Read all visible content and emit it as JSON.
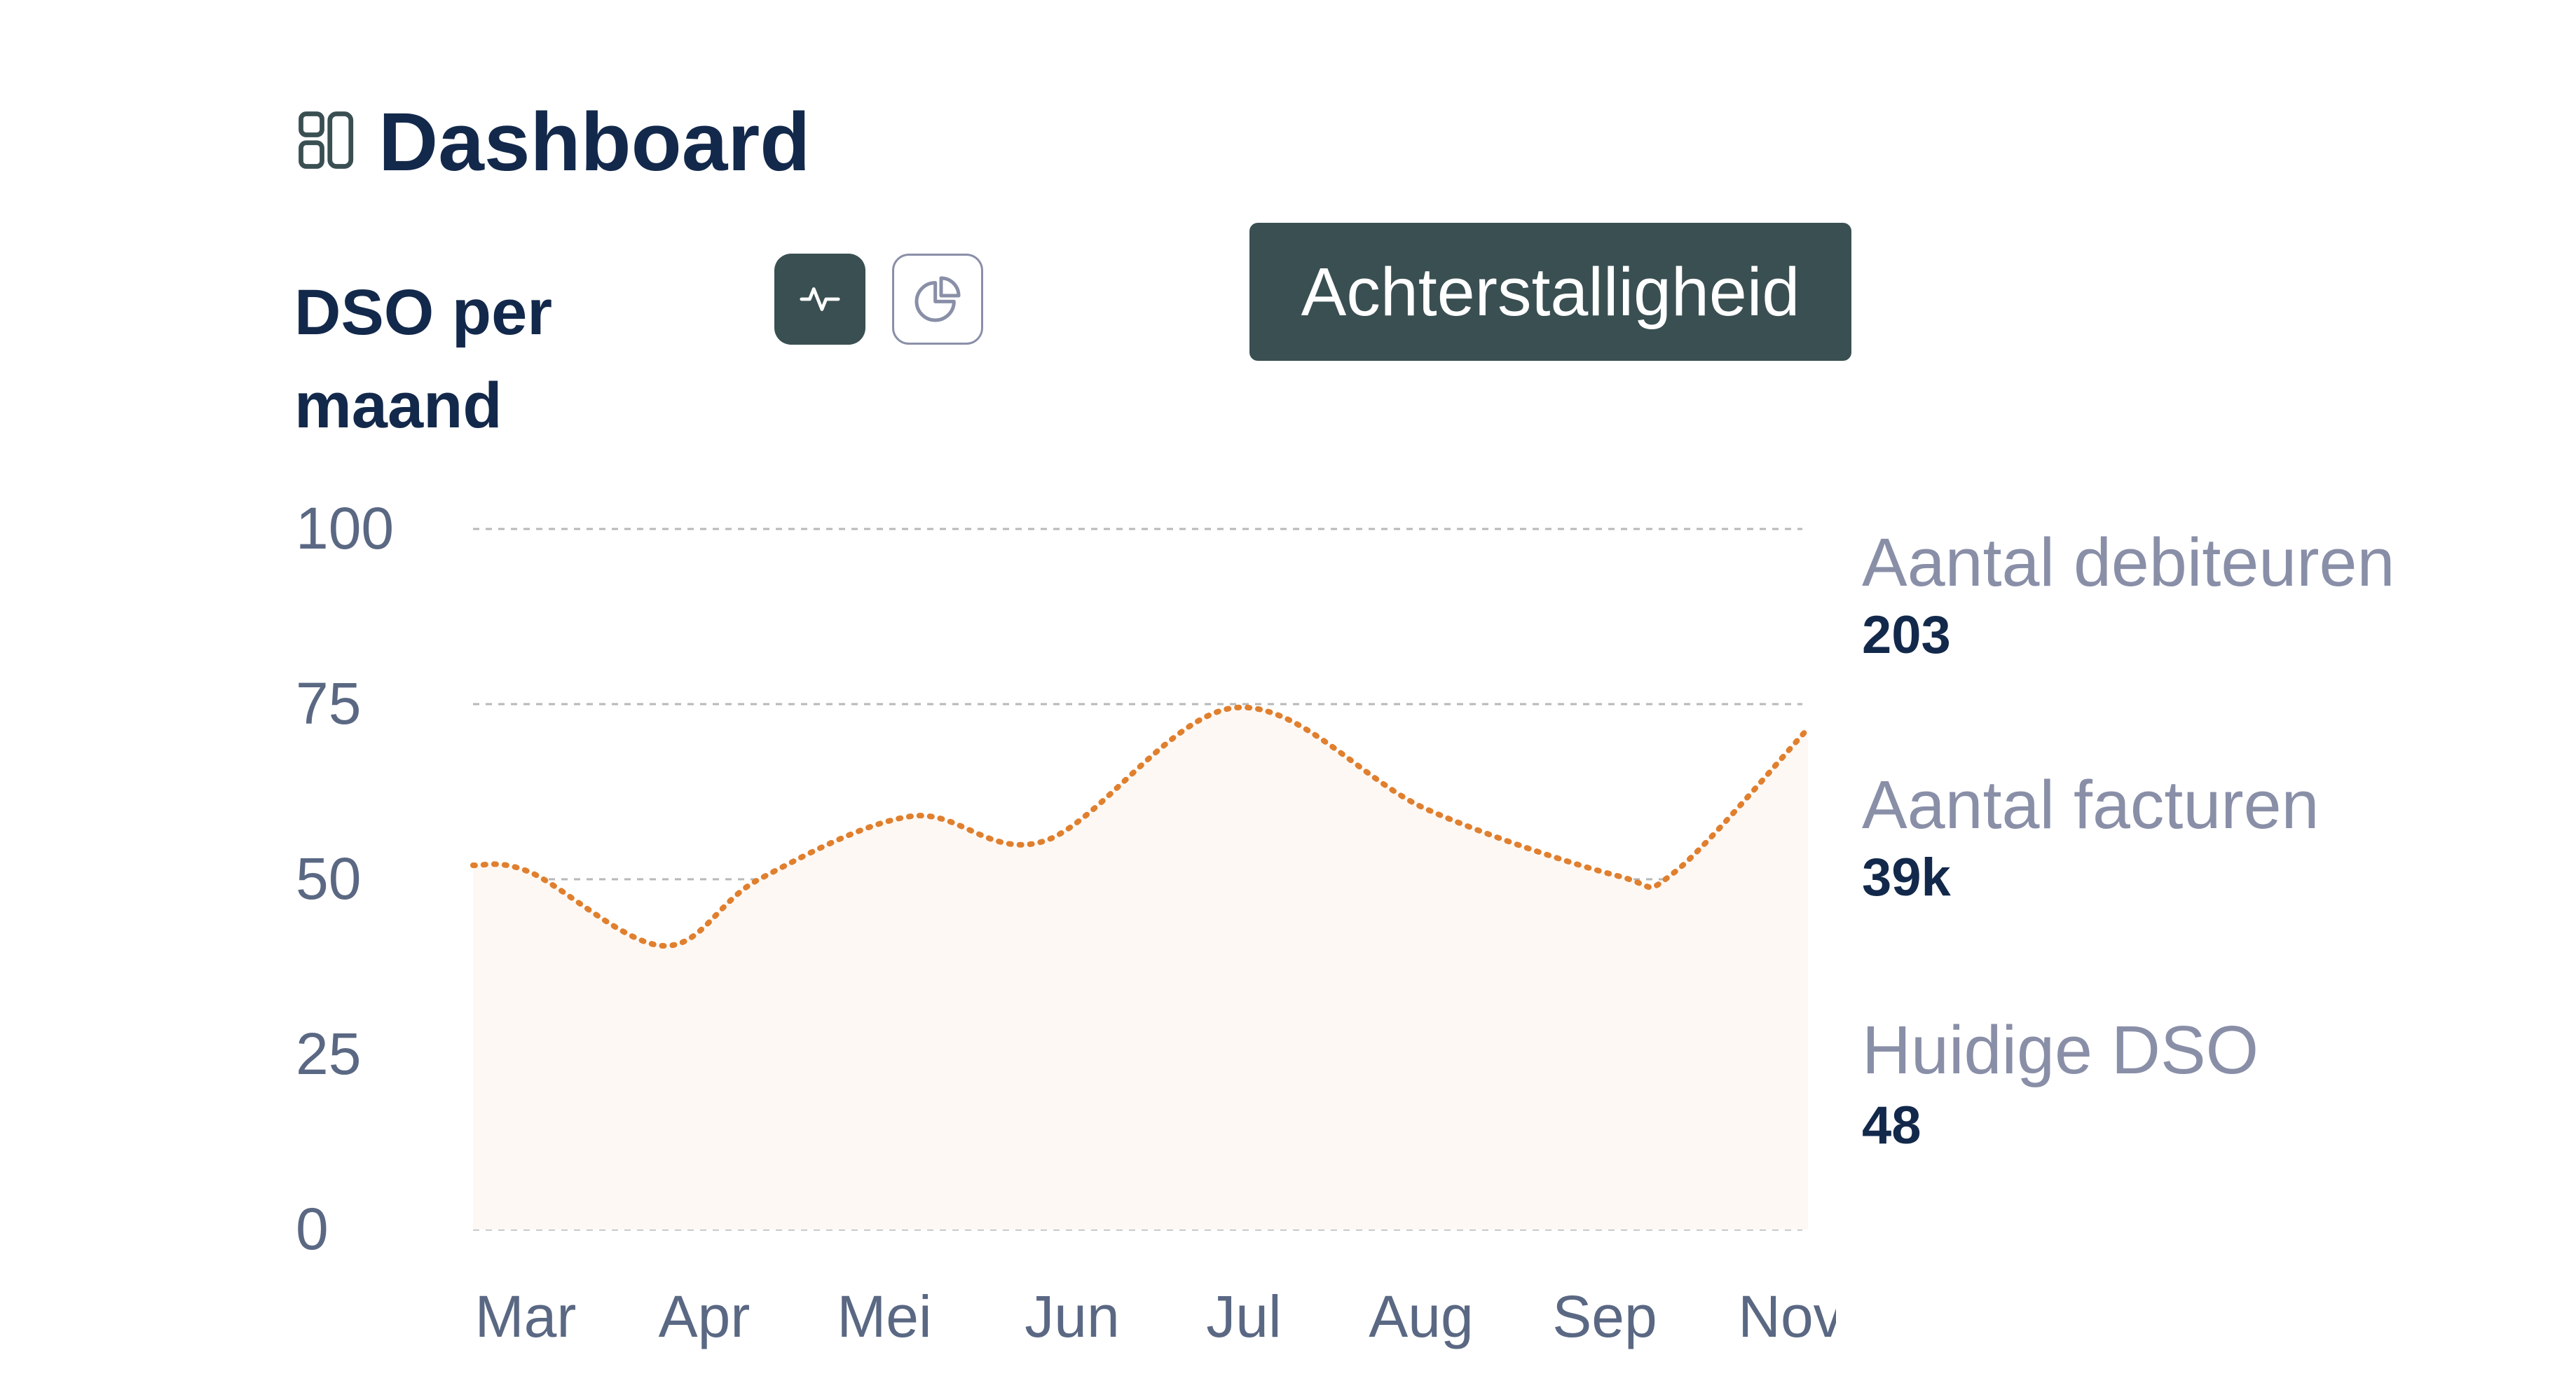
{
  "header": {
    "title": "Dashboard",
    "icon": "dashboard-layout-icon"
  },
  "chart_section": {
    "title": "DSO per maand",
    "toggle": {
      "active": "line",
      "buttons": [
        {
          "name": "line-chart-icon"
        },
        {
          "name": "pie-chart-icon"
        }
      ]
    },
    "tooltip": "Achterstalligheid"
  },
  "stats": [
    {
      "label": "Aantal debiteuren",
      "value": "203"
    },
    {
      "label": "Aantal facturen",
      "value": "39k"
    },
    {
      "label": "Huidige DSO",
      "value": "48"
    }
  ],
  "colors": {
    "title": "#13294b",
    "accent_dark": "#3a4f52",
    "muted": "#8a8fa8",
    "line": "#e07f2e",
    "area": "#fdf8f4",
    "axis_text": "#5a6883",
    "grid": "#b8b8b8"
  },
  "chart_data": {
    "type": "area",
    "title": "DSO per maand",
    "categories": [
      "Mar",
      "Apr",
      "Mei",
      "Jun",
      "Jul",
      "Aug",
      "Sep",
      "Nov"
    ],
    "x_samples": [
      0,
      0.3,
      1,
      1.5,
      2.3,
      3,
      4,
      5,
      6,
      6.3,
      7
    ],
    "y_samples": [
      52,
      51,
      40.5,
      50,
      59,
      55.5,
      74.5,
      60,
      50.5,
      51,
      71.5
    ],
    "yticks": [
      0,
      25,
      50,
      75,
      100
    ],
    "ylim": [
      0,
      100
    ],
    "xlabel": "",
    "ylabel": "",
    "grid": true,
    "line_style": "dotted"
  }
}
